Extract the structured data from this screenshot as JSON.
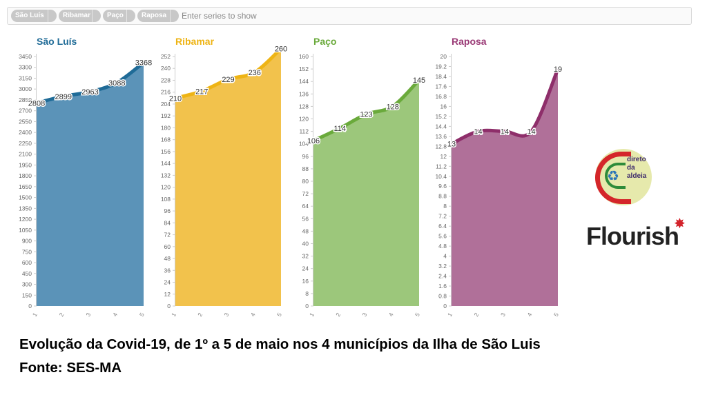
{
  "filter": {
    "chips": [
      "São Luís",
      "Ribamar",
      "Paço",
      "Raposa"
    ],
    "placeholder": "Enter series to show"
  },
  "chart_data": [
    {
      "type": "area",
      "title": "São Luís",
      "color": "#5b93b8",
      "line_color": "#1f6b97",
      "title_color": "#1f6b97",
      "x": [
        1,
        2,
        3,
        4,
        5
      ],
      "values": [
        2808,
        2899,
        2963,
        3088,
        3368
      ],
      "ylim": [
        0,
        3450
      ],
      "ystep": 150,
      "yticks": [
        "0",
        "150",
        "300",
        "450",
        "600",
        "750",
        "900",
        "1050",
        "1200",
        "1350",
        "1500",
        "1650",
        "1800",
        "1950",
        "2100",
        "2250",
        "2400",
        "2550",
        "2700",
        "2850",
        "3000",
        "3150",
        "3300",
        "3450"
      ]
    },
    {
      "type": "area",
      "title": "Ribamar",
      "color": "#f2c24c",
      "line_color": "#eeb415",
      "title_color": "#eeb415",
      "x": [
        1,
        2,
        3,
        4,
        5
      ],
      "values": [
        210,
        217,
        229,
        236,
        260
      ],
      "ylim": [
        0,
        252
      ],
      "ystep": 12,
      "yticks": [
        "0",
        "12",
        "24",
        "36",
        "48",
        "60",
        "72",
        "84",
        "96",
        "108",
        "120",
        "132",
        "144",
        "156",
        "168",
        "180",
        "192",
        "204",
        "216",
        "228",
        "240",
        "252"
      ]
    },
    {
      "type": "area",
      "title": "Paço",
      "color": "#9cc77b",
      "line_color": "#6aaa3b",
      "title_color": "#6aaa3b",
      "x": [
        1,
        2,
        3,
        4,
        5
      ],
      "values": [
        106,
        114,
        123,
        128,
        145
      ],
      "ylim": [
        0,
        160
      ],
      "ystep": 8,
      "yticks": [
        "0",
        "8",
        "16",
        "24",
        "32",
        "40",
        "48",
        "56",
        "64",
        "72",
        "80",
        "88",
        "96",
        "104",
        "112",
        "120",
        "128",
        "136",
        "144",
        "152",
        "160"
      ]
    },
    {
      "type": "area",
      "title": "Raposa",
      "color": "#b07099",
      "line_color": "#8e2e6a",
      "title_color": "#9a3a76",
      "x": [
        1,
        2,
        3,
        4,
        5
      ],
      "values": [
        13,
        14,
        14,
        14,
        19
      ],
      "ylim": [
        0,
        20
      ],
      "ystep": 0.8,
      "yticks": [
        "0",
        "0.8",
        "1.6",
        "2.4",
        "3.2",
        "4",
        "4.8",
        "5.6",
        "6.4",
        "7.2",
        "8",
        "8.8",
        "9.6",
        "10.4",
        "11.2",
        "12",
        "12.8",
        "13.6",
        "14.4",
        "15.2",
        "16",
        "16.8",
        "17.6",
        "18.4",
        "19.2",
        "20"
      ]
    }
  ],
  "logo": {
    "lines": [
      "direto",
      "da",
      "aldeia"
    ]
  },
  "brand": {
    "name": "Flourish"
  },
  "caption": {
    "line1": "Evolução da Covid-19, de 1º a 5 de maio nos 4 municípios da Ilha de São Luis",
    "line2": "Fonte: SES-MA"
  }
}
